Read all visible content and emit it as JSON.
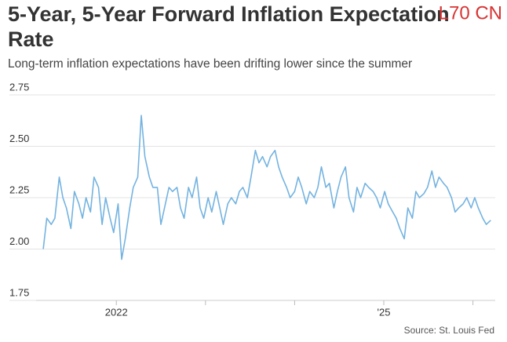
{
  "chart_data": {
    "type": "line",
    "title": "5-Year, 5-Year Forward Inflation Expectation Rate",
    "subtitle": "Long-term inflation expectations have been drifting lower since the summer",
    "source": "Source: St. Louis Fed",
    "watermark": "L70 CN",
    "series": [
      {
        "color": "#74b3e0",
        "x": [
          2021.18,
          2021.22,
          2021.27,
          2021.31,
          2021.36,
          2021.4,
          2021.44,
          2021.49,
          2021.53,
          2021.58,
          2021.62,
          2021.66,
          2021.71,
          2021.75,
          2021.8,
          2021.84,
          2021.88,
          2021.93,
          2021.97,
          2022.02,
          2022.06,
          2022.1,
          2022.15,
          2022.19,
          2022.24,
          2022.28,
          2022.32,
          2022.37,
          2022.41,
          2022.46,
          2022.5,
          2022.54,
          2022.59,
          2022.63,
          2022.68,
          2022.72,
          2022.76,
          2022.81,
          2022.85,
          2022.9,
          2022.94,
          2022.98,
          2023.03,
          2023.07,
          2023.12,
          2023.16,
          2023.2,
          2023.25,
          2023.29,
          2023.34,
          2023.38,
          2023.42,
          2023.47,
          2023.51,
          2023.56,
          2023.6,
          2023.64,
          2023.69,
          2023.73,
          2023.78,
          2023.82,
          2023.86,
          2023.91,
          2023.95,
          2024.0,
          2024.04,
          2024.08,
          2024.13,
          2024.17,
          2024.22,
          2024.26,
          2024.3,
          2024.35,
          2024.39,
          2024.44,
          2024.48,
          2024.52,
          2024.57,
          2024.61,
          2024.66,
          2024.7,
          2024.74,
          2024.79,
          2024.83,
          2024.88,
          2024.92,
          2024.96,
          2025.01,
          2025.05,
          2025.1,
          2025.14,
          2025.18,
          2025.23,
          2025.27,
          2025.32,
          2025.36,
          2025.4,
          2025.45,
          2025.49,
          2025.54,
          2025.58,
          2025.62,
          2025.67,
          2025.71,
          2025.76,
          2025.8,
          2025.84,
          2025.89,
          2025.93,
          2025.98,
          2026.02,
          2026.06,
          2026.11,
          2026.15,
          2026.2
        ],
        "values": [
          2.0,
          2.15,
          2.12,
          2.15,
          2.35,
          2.25,
          2.2,
          2.1,
          2.28,
          2.22,
          2.15,
          2.25,
          2.18,
          2.35,
          2.3,
          2.12,
          2.25,
          2.15,
          2.08,
          2.22,
          1.95,
          2.05,
          2.2,
          2.3,
          2.35,
          2.65,
          2.45,
          2.35,
          2.3,
          2.3,
          2.12,
          2.2,
          2.3,
          2.28,
          2.3,
          2.2,
          2.15,
          2.3,
          2.25,
          2.35,
          2.2,
          2.15,
          2.25,
          2.18,
          2.28,
          2.2,
          2.12,
          2.22,
          2.25,
          2.22,
          2.28,
          2.3,
          2.25,
          2.35,
          2.48,
          2.42,
          2.45,
          2.4,
          2.45,
          2.48,
          2.4,
          2.35,
          2.3,
          2.25,
          2.28,
          2.35,
          2.3,
          2.22,
          2.28,
          2.25,
          2.3,
          2.4,
          2.3,
          2.32,
          2.2,
          2.28,
          2.35,
          2.4,
          2.25,
          2.18,
          2.3,
          2.25,
          2.32,
          2.3,
          2.28,
          2.25,
          2.2,
          2.28,
          2.22,
          2.18,
          2.15,
          2.1,
          2.05,
          2.2,
          2.15,
          2.28,
          2.25,
          2.27,
          2.3,
          2.38,
          2.3,
          2.35,
          2.32,
          2.3,
          2.25,
          2.18,
          2.2,
          2.22,
          2.25,
          2.2,
          2.25,
          2.2,
          2.15,
          2.12,
          2.14
        ]
      }
    ],
    "xlim": [
      2021.1,
      2026.25
    ],
    "xticks": [
      2022,
      {
        "value": 2025,
        "label": "'25"
      }
    ],
    "xminor_ticks": [
      2023,
      2024,
      2026
    ],
    "ylim": [
      1.75,
      2.75
    ],
    "yticks": [
      2.75,
      {
        "value": 2.5,
        "label": "2.50"
      },
      2.25,
      {
        "value": 2,
        "label": "2.00"
      },
      1.75
    ],
    "grid": true
  }
}
